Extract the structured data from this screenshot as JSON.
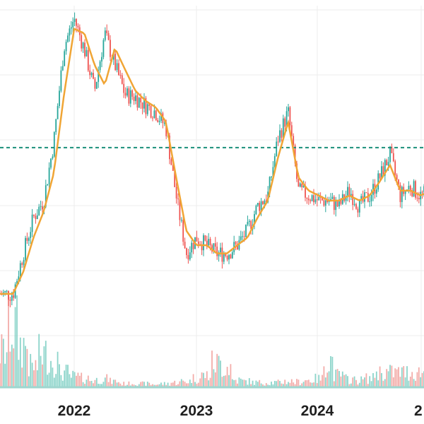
{
  "chart_data": {
    "type": "candlestick",
    "title": "",
    "xlabel": "",
    "ylabel": "",
    "x_tick_labels": [
      "2022",
      "2023",
      "2024",
      "2"
    ],
    "grid": true,
    "horizontal_reference_line": {
      "style": "dashed",
      "color": "#1a8f7a"
    },
    "moving_average": {
      "color": "#f0a535"
    },
    "colors": {
      "up": "#26a69a",
      "down": "#ef5350",
      "grid": "#ececec"
    },
    "price_series": [
      [
        "2021-07",
        0.9
      ],
      [
        "2021-08",
        1.3
      ],
      [
        "2021-09",
        1.8
      ],
      [
        "2021-10",
        2.1
      ],
      [
        "2021-11",
        3.6
      ],
      [
        "2021-12",
        8.5
      ],
      [
        "2022-01",
        11.0
      ],
      [
        "2022-02",
        8.3
      ],
      [
        "2022-03",
        5.7
      ],
      [
        "2022-04",
        9.6
      ],
      [
        "2022-05",
        7.2
      ],
      [
        "2022-06",
        5.5
      ],
      [
        "2022-07",
        5.4
      ],
      [
        "2022-08",
        5.0
      ],
      [
        "2022-09",
        4.7
      ],
      [
        "2022-10",
        4.1
      ],
      [
        "2022-11",
        2.2
      ],
      [
        "2022-12",
        1.3
      ],
      [
        "2023-01",
        1.5
      ],
      [
        "2023-02",
        1.4
      ],
      [
        "2023-03",
        1.3
      ],
      [
        "2023-04",
        1.3
      ],
      [
        "2023-05",
        1.4
      ],
      [
        "2023-06",
        1.6
      ],
      [
        "2023-07",
        2.0
      ],
      [
        "2023-08",
        2.2
      ],
      [
        "2023-09",
        3.7
      ],
      [
        "2023-10",
        4.7
      ],
      [
        "2023-11",
        2.3
      ],
      [
        "2023-12",
        2.2
      ],
      [
        "2024-01",
        2.1
      ],
      [
        "2024-02",
        2.1
      ],
      [
        "2024-03",
        2.0
      ],
      [
        "2024-04",
        2.3
      ],
      [
        "2024-05",
        2.0
      ],
      [
        "2024-06",
        2.2
      ],
      [
        "2024-07",
        2.6
      ],
      [
        "2024-08",
        3.2
      ],
      [
        "2024-09",
        2.2
      ],
      [
        "2024-10",
        2.4
      ],
      [
        "2024-11",
        2.2
      ],
      [
        "2024-12",
        2.3
      ],
      [
        "2025-01",
        2.4
      ]
    ],
    "moving_average_values": [
      0.9,
      1.1,
      1.5,
      1.9,
      2.7,
      5.5,
      10.0,
      9.6,
      7.2,
      6.0,
      8.4,
      6.9,
      5.7,
      5.2,
      4.9,
      4.3,
      2.6,
      1.6,
      1.4,
      1.4,
      1.3,
      1.3,
      1.4,
      1.5,
      1.8,
      2.1,
      3.1,
      4.3,
      2.6,
      2.3,
      2.2,
      2.1,
      2.1,
      2.2,
      2.1,
      2.2,
      2.5,
      2.9,
      2.3,
      2.3,
      2.2,
      2.3,
      2.4
    ],
    "reference_level": 3.4,
    "volume": [
      5,
      6,
      8,
      10,
      22,
      60,
      100,
      70,
      35,
      55,
      45,
      25,
      18,
      15,
      12,
      14,
      10,
      6,
      7,
      6,
      5,
      6,
      8,
      10,
      15,
      20,
      40,
      35,
      12,
      10,
      8,
      8,
      8,
      10,
      9,
      12,
      14,
      45,
      20,
      14,
      12,
      15,
      25
    ]
  }
}
